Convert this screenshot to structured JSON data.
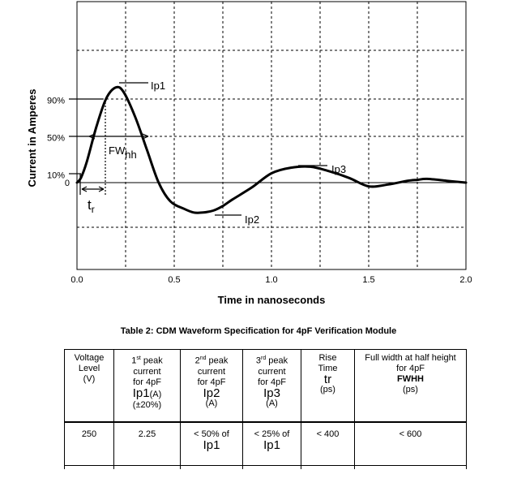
{
  "chart_data": {
    "type": "line",
    "ylabel": "Current in Amperes",
    "xlabel": "Time in nanoseconds",
    "xlim": [
      0.0,
      2.0
    ],
    "x_ticks": [
      "0.0",
      "0.5",
      "1.0",
      "1.5",
      "2.0"
    ],
    "y_levels": [
      {
        "label": "90%",
        "value": 0.9
      },
      {
        "label": "50%",
        "value": 0.5
      },
      {
        "label": "10%",
        "value": 0.1
      },
      {
        "label": "0",
        "value": 0.0
      }
    ],
    "series": [
      {
        "name": "CDM waveform",
        "x": [
          0.0,
          0.02,
          0.05,
          0.1,
          0.15,
          0.2,
          0.24,
          0.3,
          0.36,
          0.42,
          0.48,
          0.55,
          0.6,
          0.65,
          0.7,
          0.75,
          0.8,
          0.9,
          1.0,
          1.1,
          1.2,
          1.3,
          1.4,
          1.5,
          1.6,
          1.7,
          1.75,
          1.8,
          1.9,
          2.0
        ],
        "values": [
          0.0,
          0.05,
          0.22,
          0.6,
          0.9,
          1.02,
          0.97,
          0.7,
          0.35,
          0.0,
          -0.2,
          -0.28,
          -0.32,
          -0.32,
          -0.3,
          -0.25,
          -0.18,
          -0.05,
          0.1,
          0.16,
          0.17,
          0.12,
          0.05,
          -0.04,
          -0.02,
          0.02,
          0.03,
          0.04,
          0.02,
          0.0
        ]
      }
    ],
    "annotations": [
      {
        "text": "Ip1",
        "x": 0.2,
        "y": 1.02
      },
      {
        "text": "Ip2",
        "x": 0.7,
        "y": -0.32
      },
      {
        "text": "Ip3",
        "x": 1.15,
        "y": 0.17
      },
      {
        "text": "FW",
        "sub": "hh",
        "x": 0.18,
        "y": 0.5
      },
      {
        "text": "t",
        "sub": "r",
        "x": 0.07,
        "y": 0.0
      }
    ]
  },
  "table": {
    "caption": "Table 2:  CDM Waveform Specification for 4pF Verification Module",
    "headers": {
      "voltage": {
        "l1": "Voltage",
        "l2": "Level",
        "l3": "(V)"
      },
      "peak1": {
        "pre": "1",
        "sup": "st",
        "post": " peak",
        "l2": "current",
        "l3": "for 4pF",
        "sym": "Ip1",
        "sym_unit": "(A)",
        "tol": "(±20%)"
      },
      "peak2": {
        "pre": "2",
        "sup": "nd",
        "post": " peak",
        "l2": "current",
        "l3": "for 4pF",
        "sym": "Ip2",
        "unit": "(A)"
      },
      "peak3": {
        "pre": "3",
        "sup": "rd",
        "post": " peak",
        "l2": "current",
        "l3": "for 4pF",
        "sym": "Ip3",
        "unit": "(A)"
      },
      "rise": {
        "l1": "Rise",
        "l2": "Time",
        "sym": "tr",
        "unit": "(ps)"
      },
      "fwhh": {
        "l1": "Full width at half height",
        "l2": "for 4pF",
        "sym": "FWHH",
        "unit": "(ps)"
      }
    },
    "row": {
      "voltage": "250",
      "peak1": "2.25",
      "peak2_text": "< 50% of",
      "peak2_sym": "Ip1",
      "peak3_text": "< 25% of",
      "peak3_sym": "Ip1",
      "rise": "< 400",
      "fwhh": "< 600"
    }
  }
}
